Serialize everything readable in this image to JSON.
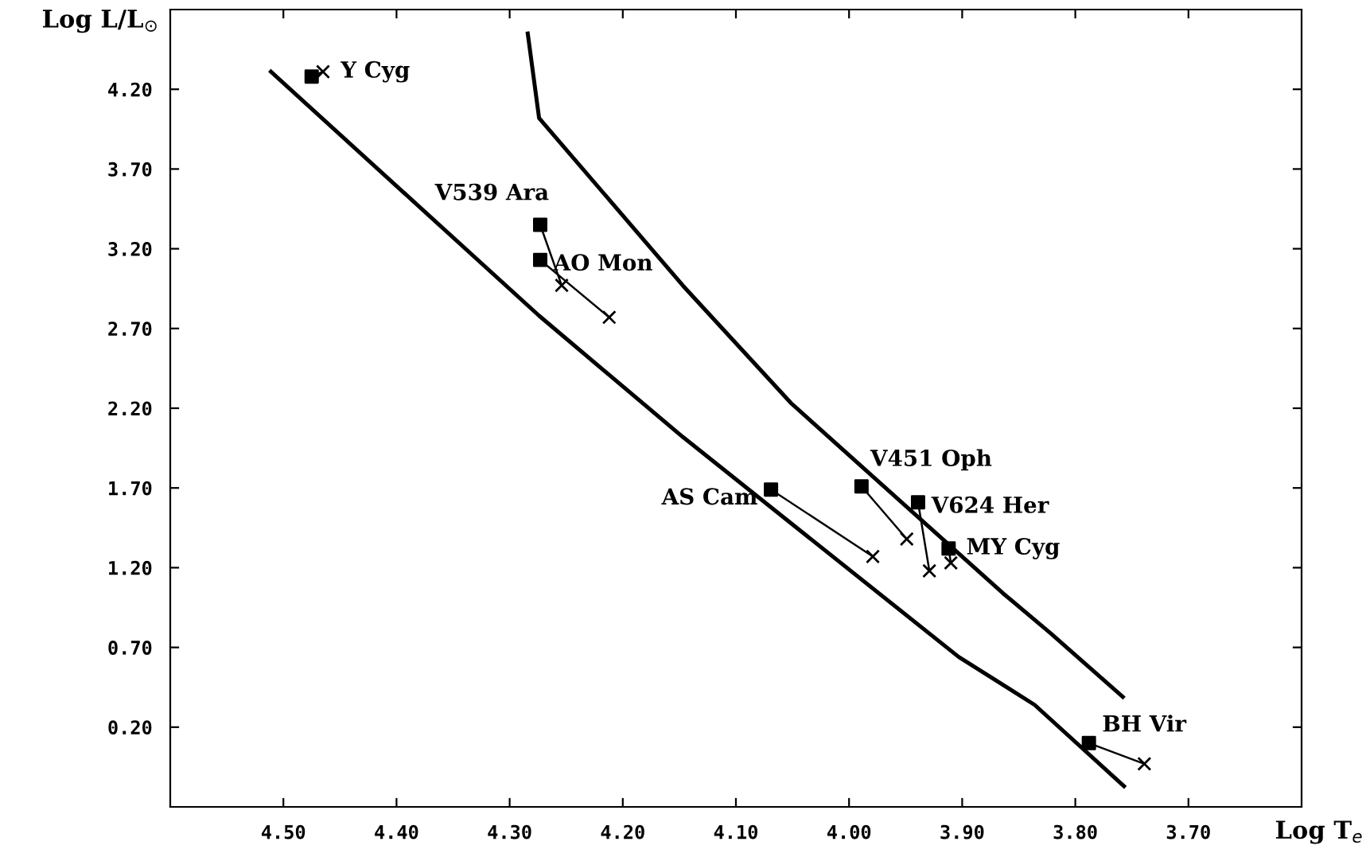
{
  "chart_data": {
    "type": "line",
    "xlabel": "Log T$_{e}$",
    "ylabel": "Log L/L$_{⊙}$",
    "xlim": [
      4.6,
      3.6
    ],
    "ylim": [
      -0.3,
      4.7
    ],
    "xticks": [
      {
        "value": 4.5,
        "label": "4.50"
      },
      {
        "value": 4.4,
        "label": "4.40"
      },
      {
        "value": 4.3,
        "label": "4.30"
      },
      {
        "value": 4.2,
        "label": "4.20"
      },
      {
        "value": 4.1,
        "label": "4.10"
      },
      {
        "value": 4.0,
        "label": "4.00"
      },
      {
        "value": 3.9,
        "label": "3.90"
      },
      {
        "value": 3.8,
        "label": "3.80"
      },
      {
        "value": 3.7,
        "label": "3.70"
      }
    ],
    "yticks": [
      {
        "value": 0.2,
        "label": "0.20"
      },
      {
        "value": 0.7,
        "label": "0.70"
      },
      {
        "value": 1.2,
        "label": "1.20"
      },
      {
        "value": 1.7,
        "label": "1.70"
      },
      {
        "value": 2.2,
        "label": "2.20"
      },
      {
        "value": 2.7,
        "label": "2.70"
      },
      {
        "value": 3.2,
        "label": "3.20"
      },
      {
        "value": 3.7,
        "label": "3.70"
      },
      {
        "value": 4.2,
        "label": "4.20"
      }
    ],
    "grid": false,
    "legend": false,
    "series": [
      {
        "color": "#000000",
        "marker": "none",
        "x": [
          4.511,
          4.274,
          4.147,
          3.903,
          3.836,
          3.757
        ],
        "values": [
          4.31,
          2.78,
          2.02,
          0.64,
          0.34,
          -0.17
        ]
      },
      {
        "color": "#000000",
        "marker": "none",
        "x": [
          4.284,
          4.274,
          4.147,
          4.051,
          3.864,
          3.822,
          3.758
        ],
        "values": [
          4.55,
          4.02,
          2.97,
          2.23,
          1.04,
          0.79,
          0.39
        ]
      },
      {
        "type": "line",
        "color": "#000000",
        "marker": "none",
        "x": [
          4.475,
          4.465
        ],
        "values": [
          4.28,
          4.31
        ]
      },
      {
        "type": "line",
        "color": "#000000",
        "marker": "none",
        "x": [
          4.273,
          4.254
        ],
        "values": [
          3.35,
          2.97
        ]
      },
      {
        "type": "line",
        "color": "#000000",
        "marker": "none",
        "x": [
          4.273,
          4.212
        ],
        "values": [
          3.13,
          2.77
        ]
      },
      {
        "type": "line",
        "color": "#000000",
        "marker": "none",
        "x": [
          4.069,
          3.979
        ],
        "values": [
          1.69,
          1.27
        ]
      },
      {
        "type": "line",
        "color": "#000000",
        "marker": "none",
        "x": [
          3.989,
          3.949
        ],
        "values": [
          1.71,
          1.38
        ]
      },
      {
        "type": "line",
        "color": "#000000",
        "marker": "none",
        "x": [
          3.939,
          3.929
        ],
        "values": [
          1.61,
          1.18
        ]
      },
      {
        "type": "line",
        "color": "#000000",
        "marker": "none",
        "x": [
          3.912,
          3.91
        ],
        "values": [
          1.32,
          1.23
        ]
      },
      {
        "type": "line",
        "color": "#000000",
        "marker": "none",
        "x": [
          3.788,
          3.739
        ],
        "values": [
          0.1,
          -0.03
        ]
      },
      {
        "type": "scatter",
        "color": "#000000",
        "marker": "square",
        "x": [
          4.475,
          4.273,
          4.273,
          4.069,
          3.989,
          3.939,
          3.912,
          3.788
        ],
        "values": [
          4.28,
          3.35,
          3.13,
          1.69,
          1.71,
          1.61,
          1.32,
          0.1
        ]
      },
      {
        "type": "scatter",
        "color": "#000000",
        "marker": "cross",
        "x": [
          4.465,
          4.254,
          4.212,
          3.979,
          3.949,
          3.929,
          3.91,
          3.739
        ],
        "values": [
          4.31,
          2.97,
          2.77,
          1.27,
          1.38,
          1.18,
          1.23,
          -0.03
        ]
      }
    ],
    "annotations": [
      {
        "text": "Y Cyg",
        "x": 4.465,
        "y": 4.31
      },
      {
        "text": "V539 Ara",
        "x": 4.273,
        "y": 3.35
      },
      {
        "text": "AO Mon",
        "x": 4.273,
        "y": 3.13
      },
      {
        "text": "AS Cam",
        "x": 4.069,
        "y": 1.69
      },
      {
        "text": "V451 Oph",
        "x": 3.989,
        "y": 1.71
      },
      {
        "text": "V624 Her",
        "x": 3.939,
        "y": 1.61
      },
      {
        "text": "MY Cyg",
        "x": 3.912,
        "y": 1.32
      },
      {
        "text": "BH Vir",
        "x": 3.788,
        "y": 0.1
      }
    ]
  }
}
